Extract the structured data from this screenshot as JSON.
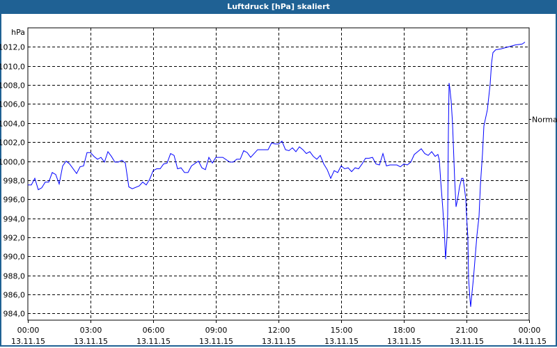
{
  "window": {
    "title": "Luftdruck [hPa] skaliert",
    "title_bar_color": "#1f6194"
  },
  "chart_data": {
    "type": "line",
    "title": "Luftdruck [hPa] skaliert",
    "ylabel": "hPa",
    "ylim": [
      983.3,
      1014.0
    ],
    "yticks": [
      984,
      986,
      988,
      990,
      992,
      994,
      996,
      998,
      1000,
      1002,
      1004,
      1006,
      1008,
      1010,
      1012
    ],
    "ytick_labels": [
      "984,0",
      "986,0",
      "988,0",
      "990,0",
      "992,0",
      "994,0",
      "996,0",
      "998,0",
      "1000,0",
      "1002,0",
      "1004,0",
      "1006,0",
      "1008,0",
      "1010,0",
      "1012,0"
    ],
    "xlim": [
      "13.11.15 00:00",
      "14.11.15 00:00"
    ],
    "xticks": [
      {
        "time": "00:00",
        "date": "13.11.15"
      },
      {
        "time": "03:00",
        "date": "13.11.15"
      },
      {
        "time": "06:00",
        "date": "13.11.15"
      },
      {
        "time": "09:00",
        "date": "13.11.15"
      },
      {
        "time": "12:00",
        "date": "13.11.15"
      },
      {
        "time": "15:00",
        "date": "13.11.15"
      },
      {
        "time": "18:00",
        "date": "13.11.15"
      },
      {
        "time": "21:00",
        "date": "13.11.15"
      },
      {
        "time": "00:00",
        "date": "14.11.15"
      }
    ],
    "grid": true,
    "line_color": "#0000ff",
    "annotation": {
      "label": "Normal",
      "value": 1004.4
    },
    "series": [
      {
        "points": [
          [
            "00:00",
            997.5
          ],
          [
            "00:10",
            997.5
          ],
          [
            "00:20",
            998.2
          ],
          [
            "00:30",
            997.0
          ],
          [
            "00:40",
            997.2
          ],
          [
            "00:50",
            997.8
          ],
          [
            "01:00",
            997.8
          ],
          [
            "01:10",
            998.8
          ],
          [
            "01:20",
            998.6
          ],
          [
            "01:30",
            997.6
          ],
          [
            "01:40",
            999.5
          ],
          [
            "01:50",
            1000.0
          ],
          [
            "02:00",
            999.7
          ],
          [
            "02:20",
            998.7
          ],
          [
            "02:30",
            999.4
          ],
          [
            "02:40",
            999.5
          ],
          [
            "02:50",
            1000.9
          ],
          [
            "03:00",
            1000.9
          ],
          [
            "03:10",
            1000.5
          ],
          [
            "03:20",
            1000.2
          ],
          [
            "03:30",
            1000.4
          ],
          [
            "03:40",
            999.9
          ],
          [
            "03:50",
            1001.0
          ],
          [
            "04:00",
            1000.5
          ],
          [
            "04:10",
            999.9
          ],
          [
            "04:20",
            999.9
          ],
          [
            "04:30",
            1000.1
          ],
          [
            "04:40",
            999.8
          ],
          [
            "04:50",
            997.3
          ],
          [
            "05:00",
            997.1
          ],
          [
            "05:20",
            997.4
          ],
          [
            "05:30",
            997.8
          ],
          [
            "05:40",
            997.5
          ],
          [
            "05:50",
            998.1
          ],
          [
            "06:00",
            999.0
          ],
          [
            "06:10",
            999.2
          ],
          [
            "06:20",
            999.2
          ],
          [
            "06:30",
            999.7
          ],
          [
            "06:40",
            999.8
          ],
          [
            "06:50",
            1000.8
          ],
          [
            "07:00",
            1000.6
          ],
          [
            "07:10",
            999.2
          ],
          [
            "07:20",
            999.3
          ],
          [
            "07:30",
            998.8
          ],
          [
            "07:40",
            998.8
          ],
          [
            "07:50",
            999.5
          ],
          [
            "08:10",
            1000.0
          ],
          [
            "08:20",
            999.3
          ],
          [
            "08:30",
            999.1
          ],
          [
            "08:40",
            1000.4
          ],
          [
            "08:50",
            999.8
          ],
          [
            "09:00",
            1000.4
          ],
          [
            "09:20",
            1000.4
          ],
          [
            "09:40",
            999.9
          ],
          [
            "09:50",
            999.9
          ],
          [
            "10:00",
            1000.2
          ],
          [
            "10:10",
            1000.2
          ],
          [
            "10:20",
            1001.1
          ],
          [
            "10:30",
            1000.9
          ],
          [
            "10:40",
            1000.4
          ],
          [
            "11:00",
            1001.2
          ],
          [
            "11:10",
            1001.2
          ],
          [
            "11:30",
            1001.2
          ],
          [
            "11:40",
            1001.9
          ],
          [
            "11:50",
            1001.8
          ],
          [
            "12:00",
            1001.8
          ],
          [
            "12:10",
            1002.1
          ],
          [
            "12:20",
            1001.2
          ],
          [
            "12:30",
            1001.1
          ],
          [
            "12:40",
            1001.4
          ],
          [
            "12:50",
            1001.0
          ],
          [
            "13:00",
            1001.5
          ],
          [
            "13:10",
            1001.2
          ],
          [
            "13:20",
            1000.8
          ],
          [
            "13:30",
            1001.0
          ],
          [
            "13:40",
            1000.5
          ],
          [
            "13:50",
            1000.2
          ],
          [
            "14:00",
            1000.6
          ],
          [
            "14:10",
            999.7
          ],
          [
            "14:20",
            999.1
          ],
          [
            "14:30",
            998.2
          ],
          [
            "14:40",
            999.0
          ],
          [
            "14:50",
            998.8
          ],
          [
            "15:00",
            999.5
          ],
          [
            "15:10",
            999.2
          ],
          [
            "15:20",
            999.3
          ],
          [
            "15:30",
            998.9
          ],
          [
            "15:40",
            999.3
          ],
          [
            "15:50",
            999.2
          ],
          [
            "16:00",
            999.7
          ],
          [
            "16:10",
            1000.3
          ],
          [
            "16:20",
            1000.3
          ],
          [
            "16:30",
            1000.4
          ],
          [
            "16:40",
            999.7
          ],
          [
            "16:50",
            999.6
          ],
          [
            "17:00",
            1000.8
          ],
          [
            "17:10",
            999.5
          ],
          [
            "17:20",
            999.6
          ],
          [
            "17:40",
            999.6
          ],
          [
            "17:50",
            999.4
          ],
          [
            "18:00",
            999.7
          ],
          [
            "18:10",
            999.6
          ],
          [
            "18:20",
            999.9
          ],
          [
            "18:30",
            1000.7
          ],
          [
            "18:40",
            1001.0
          ],
          [
            "18:50",
            1001.3
          ],
          [
            "19:00",
            1000.8
          ],
          [
            "19:10",
            1000.6
          ],
          [
            "19:20",
            1001.0
          ],
          [
            "19:30",
            1000.5
          ],
          [
            "19:38",
            1000.7
          ],
          [
            "19:42",
            1000.1
          ],
          [
            "19:46",
            997.9
          ],
          [
            "19:52",
            995.0
          ],
          [
            "19:56",
            992.8
          ],
          [
            "20:00",
            989.7
          ],
          [
            "20:04",
            992.0
          ],
          [
            "20:06",
            994.4
          ],
          [
            "20:08",
            1003.0
          ],
          [
            "20:10",
            1008.2
          ],
          [
            "20:12",
            1007.7
          ],
          [
            "20:16",
            1006.3
          ],
          [
            "20:20",
            1003.9
          ],
          [
            "20:26",
            998.1
          ],
          [
            "20:30",
            995.2
          ],
          [
            "20:34",
            995.9
          ],
          [
            "20:40",
            997.3
          ],
          [
            "20:46",
            998.2
          ],
          [
            "20:50",
            998.2
          ],
          [
            "20:54",
            997.2
          ],
          [
            "20:58",
            996.0
          ],
          [
            "21:00",
            994.4
          ],
          [
            "21:04",
            992.0
          ],
          [
            "21:06",
            987.7
          ],
          [
            "21:10",
            985.5
          ],
          [
            "21:12",
            984.7
          ],
          [
            "21:14",
            985.5
          ],
          [
            "21:20",
            987.7
          ],
          [
            "21:30",
            992.2
          ],
          [
            "21:36",
            994.2
          ],
          [
            "21:40",
            997.5
          ],
          [
            "21:46",
            1000.8
          ],
          [
            "21:50",
            1003.7
          ],
          [
            "22:00",
            1005.4
          ],
          [
            "22:08",
            1008.1
          ],
          [
            "22:12",
            1010.3
          ],
          [
            "22:16",
            1011.4
          ],
          [
            "22:24",
            1011.7
          ],
          [
            "22:40",
            1011.8
          ],
          [
            "23:00",
            1012.0
          ],
          [
            "23:20",
            1012.2
          ],
          [
            "23:40",
            1012.3
          ],
          [
            "23:48",
            1012.5
          ]
        ]
      }
    ]
  }
}
